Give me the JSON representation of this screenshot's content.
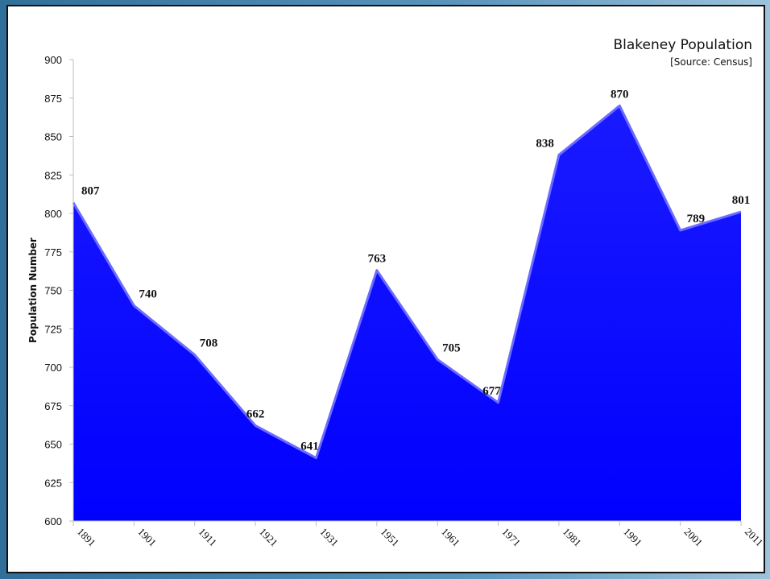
{
  "chart_data": {
    "type": "area",
    "title": "Blakeney Population",
    "subtitle": "[Source: Census]",
    "ylabel": "Population Number",
    "xlabel": "",
    "ylim": [
      600,
      900
    ],
    "yticks": [
      600,
      625,
      650,
      675,
      700,
      725,
      750,
      775,
      800,
      825,
      850,
      875,
      900
    ],
    "categories": [
      "1891",
      "1901",
      "1911",
      "1921",
      "1931",
      "1951",
      "1961",
      "1971",
      "1981",
      "1991",
      "2001",
      "2011"
    ],
    "values": [
      807,
      740,
      708,
      662,
      641,
      763,
      705,
      677,
      838,
      870,
      789,
      801
    ],
    "color": "#0000ff",
    "grid": false,
    "legend": "none"
  }
}
